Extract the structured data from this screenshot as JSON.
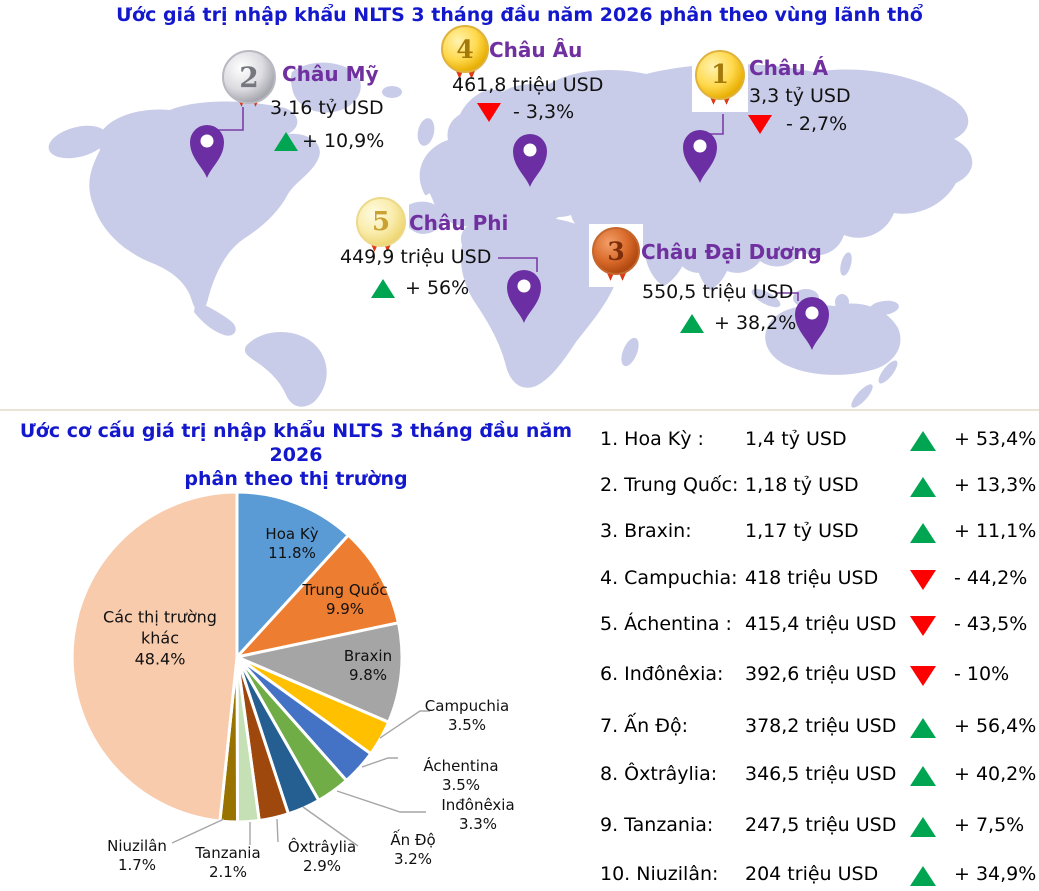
{
  "map_section": {
    "title": "Ước giá trị nhập khẩu NLTS 3 tháng đầu năm 2026 phân theo vùng lãnh thổ",
    "regions": [
      {
        "rank": "2",
        "name": "Châu Mỹ",
        "value": "3,16 tỷ USD",
        "trend": "up",
        "change": "+ 10,9%",
        "medal": "silver"
      },
      {
        "rank": "4",
        "name": "Châu Âu",
        "value": "461,8 triệu USD",
        "trend": "down",
        "change": "- 3,3%",
        "medal": "gold"
      },
      {
        "rank": "1",
        "name": "Châu Á",
        "value": "3,3 tỷ USD",
        "trend": "down",
        "change": "- 2,7%",
        "medal": "gold"
      },
      {
        "rank": "5",
        "name": "Châu Phi",
        "value": "449,9 triệu USD",
        "trend": "up",
        "change": "+ 56%",
        "medal": "gold-pale"
      },
      {
        "rank": "3",
        "name": "Châu Đại Dương",
        "value": "550,5 triệu USD",
        "trend": "up",
        "change": "+ 38,2%",
        "medal": "bronze"
      }
    ]
  },
  "pie_section": {
    "title_line1": "Ước cơ cấu giá trị nhập khẩu NLTS 3 tháng đầu năm 2026",
    "title_line2": "phân theo thị trường"
  },
  "chart_data": {
    "type": "pie",
    "title": "Ước cơ cấu giá trị nhập khẩu NLTS 3 tháng đầu năm 2026 phân theo thị trường",
    "categories": [
      "Hoa Kỳ",
      "Trung Quốc",
      "Braxin",
      "Campuchia",
      "Áchentina",
      "Inđônêxia",
      "Ấn Độ",
      "Ôxtrâylia",
      "Tanzania",
      "Niuzilân",
      "Các thị trường khác"
    ],
    "values": [
      11.8,
      9.9,
      9.8,
      3.5,
      3.5,
      3.3,
      3.2,
      2.9,
      2.1,
      1.7,
      48.4
    ],
    "unit": "%",
    "colors": [
      "#5B9BD5",
      "#ED7D31",
      "#A5A5A5",
      "#FFC000",
      "#4472C4",
      "#70AD47",
      "#255E91",
      "#9E480E",
      "#C5E0B4",
      "#997300",
      "#F8CBAD"
    ],
    "start_angle": 0,
    "direction": "clockwise",
    "legend": "none",
    "labels_on_chart": true
  },
  "ranking": {
    "rows": [
      {
        "rank": "1.",
        "name": "Hoa Kỳ :",
        "value": "1,4 tỷ USD",
        "trend": "up",
        "change": "+ 53,4%"
      },
      {
        "rank": "2.",
        "name": "Trung Quốc:",
        "value": "1,18 tỷ USD",
        "trend": "up",
        "change": "+ 13,3%"
      },
      {
        "rank": "3.",
        "name": "Braxin:",
        "value": "1,17 tỷ USD",
        "trend": "up",
        "change": "+ 11,1%"
      },
      {
        "rank": "4.",
        "name": "Campuchia:",
        "value": "418 triệu USD",
        "trend": "down",
        "change": "- 44,2%"
      },
      {
        "rank": "5.",
        "name": "Áchentina :",
        "value": "415,4 triệu USD",
        "trend": "down",
        "change": "- 43,5%"
      },
      {
        "rank": "6.",
        "name": "Inđônêxia:",
        "value": "392,6 triệu USD",
        "trend": "down",
        "change": "- 10%"
      },
      {
        "rank": "7.",
        "name": "Ấn Độ:",
        "value": "378,2 triệu USD",
        "trend": "up",
        "change": "+ 56,4%"
      },
      {
        "rank": "8.",
        "name": "Ôxtrâylia:",
        "value": "346,5 triệu USD",
        "trend": "up",
        "change": "+ 40,2%"
      },
      {
        "rank": "9.",
        "name": "Tanzania:",
        "value": "247,5 triệu USD",
        "trend": "up",
        "change": "+ 7,5%"
      },
      {
        "rank": "10.",
        "name": "Niuzilân:",
        "value": "204 triệu USD",
        "trend": "up",
        "change": "+ 34,9%"
      }
    ]
  },
  "colors": {
    "title_blue": "#1418CC",
    "region_name_purple": "#7030A0",
    "up_green": "#00A551",
    "down_red": "#FF0000",
    "map_land": "#C8CCE8",
    "map_pin_purple": "#6B2FA3",
    "connector_purple": "#7A3DA8",
    "leader_line_gray": "#A6A6A6"
  }
}
